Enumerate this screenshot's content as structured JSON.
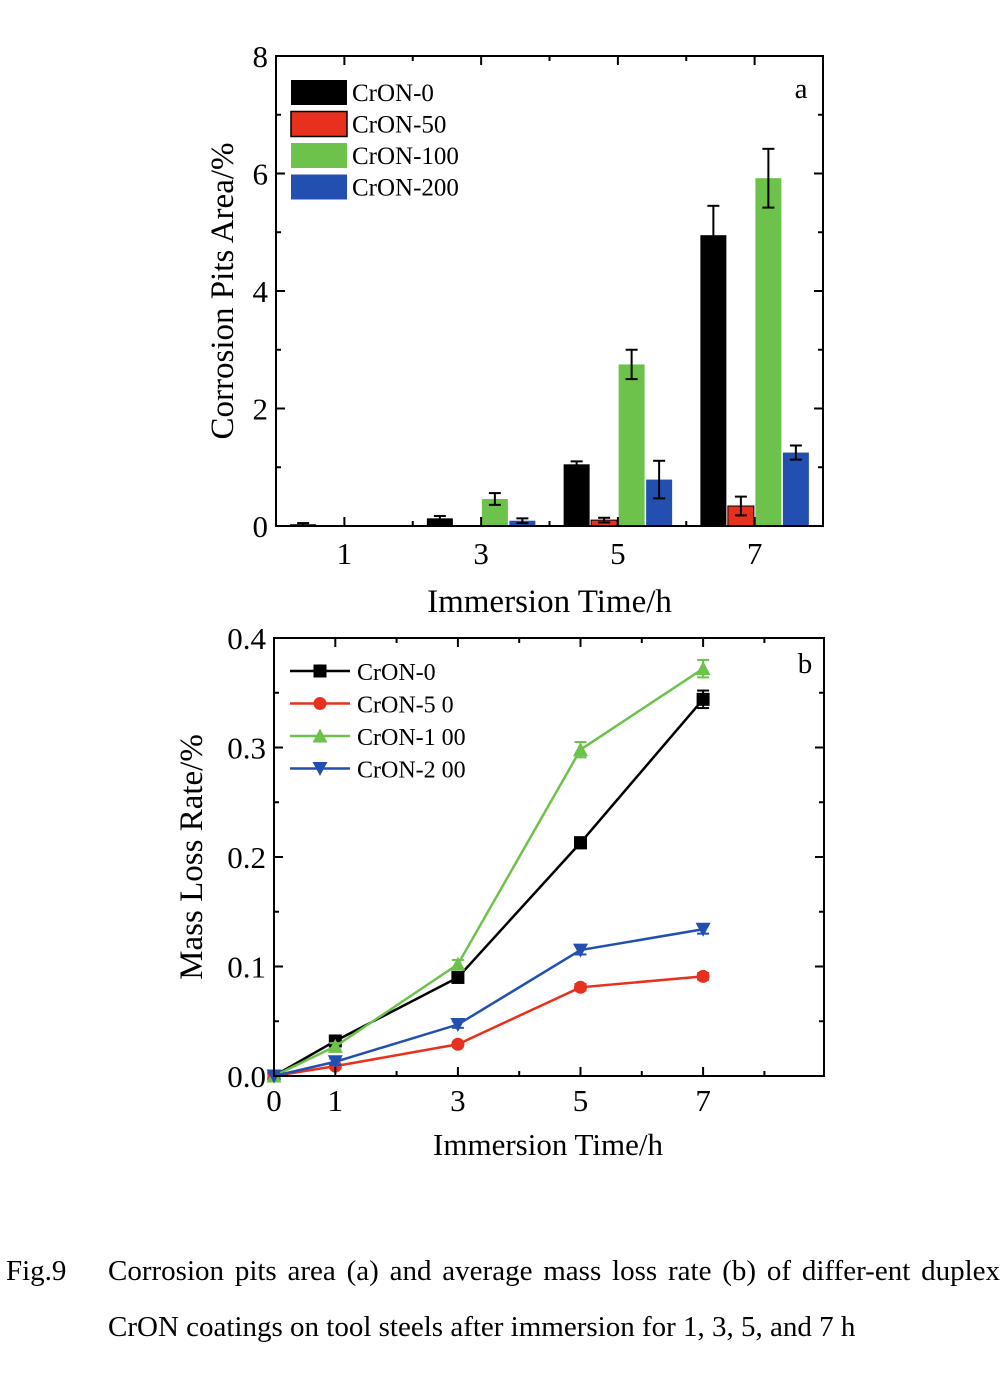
{
  "chart_data": [
    {
      "type": "bar",
      "panel_label": "a",
      "xlabel": "Immersion Time/h",
      "ylabel": "Corrosion Pits Area/%",
      "categories": [
        "1",
        "3",
        "5",
        "7"
      ],
      "ylim": [
        0,
        8
      ],
      "yticks": [
        "0",
        "2",
        "4",
        "6",
        "8"
      ],
      "legend_position": "top-left",
      "series": [
        {
          "name": "CrON-0",
          "color": "#000000",
          "values": [
            0.03,
            0.13,
            1.05,
            4.95
          ],
          "errors": [
            0.02,
            0.04,
            0.05,
            0.5
          ]
        },
        {
          "name": "CrON-50",
          "color": "#e8301e",
          "values": [
            0.0,
            0.0,
            0.1,
            0.34
          ],
          "errors": [
            0.0,
            0.0,
            0.04,
            0.16
          ]
        },
        {
          "name": "CrON-100",
          "color": "#6cc24a",
          "values": [
            0.0,
            0.46,
            2.75,
            5.92
          ],
          "errors": [
            0.0,
            0.1,
            0.25,
            0.5
          ]
        },
        {
          "name": "CrON-200",
          "color": "#2350b0",
          "values": [
            0.0,
            0.09,
            0.79,
            1.25
          ],
          "errors": [
            0.0,
            0.04,
            0.32,
            0.12
          ]
        }
      ]
    },
    {
      "type": "line",
      "panel_label": "b",
      "xlabel": "Immersion Time/h",
      "ylabel": "Mass Loss Rate/%",
      "x": [
        0,
        1,
        3,
        5,
        7
      ],
      "xticks": [
        "0",
        "1",
        "3",
        "5",
        "7"
      ],
      "ylim": [
        0,
        0.4
      ],
      "yticks": [
        "0.0",
        "0.1",
        "0.2",
        "0.3",
        "0.4"
      ],
      "legend_position": "top-left",
      "series": [
        {
          "name": "CrON-0",
          "legend_label": "CrON-0",
          "color": "#000000",
          "marker": "square",
          "values": [
            0,
            0.032,
            0.09,
            0.213,
            0.344
          ],
          "errors": [
            0,
            0.003,
            0.003,
            0.005,
            0.008
          ]
        },
        {
          "name": "CrON-50",
          "legend_label": "CrON-5 0",
          "color": "#e8301e",
          "marker": "circle",
          "values": [
            0,
            0.009,
            0.029,
            0.081,
            0.091
          ],
          "errors": [
            0,
            0.002,
            0.002,
            0.003,
            0.003
          ]
        },
        {
          "name": "CrON-100",
          "legend_label": "CrON-1 00",
          "color": "#6cc24a",
          "marker": "triangle-up",
          "values": [
            0,
            0.027,
            0.102,
            0.298,
            0.372
          ],
          "errors": [
            0,
            0.003,
            0.004,
            0.007,
            0.008
          ]
        },
        {
          "name": "CrON-200",
          "legend_label": "CrON-2 00",
          "color": "#2350b0",
          "marker": "triangle-down",
          "values": [
            0,
            0.013,
            0.047,
            0.115,
            0.134
          ],
          "errors": [
            0,
            0.003,
            0.003,
            0.004,
            0.004
          ]
        }
      ]
    }
  ],
  "caption": {
    "label": "Fig.9",
    "text": "Corrosion pits area (a) and average mass loss rate (b) of differ-ent duplex CrON coatings on tool steels after immersion for 1, 3, 5, and 7 h"
  }
}
